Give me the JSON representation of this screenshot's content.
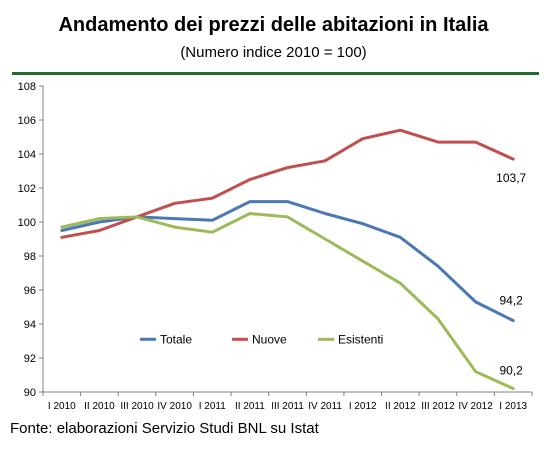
{
  "header": {
    "title": "Andamento dei prezzi delle abitazioni in Italia",
    "subtitle": "(Numero indice 2010 = 100)"
  },
  "footer": {
    "source": "Fonte: elaborazioni Servizio Studi BNL su Istat"
  },
  "colors": {
    "rule": "#1f6b2a",
    "Totale": "#4a78b5",
    "Nuove": "#c0504d",
    "Esistenti": "#9bbb59"
  },
  "chart_data": {
    "type": "line",
    "title": "Andamento dei prezzi delle abitazioni in Italia",
    "subtitle": "(Numero indice 2010 = 100)",
    "categories": [
      "I 2010",
      "II 2010",
      "III 2010",
      "IV 2010",
      "I 2011",
      "II 2011",
      "III 2011",
      "IV 2011",
      "I 2012",
      "II 2012",
      "III 2012",
      "IV 2012",
      "I 2013"
    ],
    "series": [
      {
        "name": "Totale",
        "values": [
          99.5,
          100.0,
          100.3,
          100.2,
          100.1,
          101.2,
          101.2,
          100.5,
          99.9,
          99.1,
          97.4,
          95.3,
          94.2
        ]
      },
      {
        "name": "Nuove",
        "values": [
          99.1,
          99.5,
          100.3,
          101.1,
          101.4,
          102.5,
          103.2,
          103.6,
          104.9,
          105.4,
          104.7,
          104.7,
          103.7
        ]
      },
      {
        "name": "Esistenti",
        "values": [
          99.7,
          100.2,
          100.3,
          99.7,
          99.4,
          100.5,
          100.3,
          99.0,
          97.7,
          96.4,
          94.3,
          91.2,
          90.2
        ]
      }
    ],
    "ylim": [
      90,
      108
    ],
    "yticks": [
      90,
      92,
      94,
      96,
      98,
      100,
      102,
      104,
      106,
      108
    ],
    "grid": false,
    "legend": "inside-bottom-left",
    "end_labels": [
      {
        "series": "Nuove",
        "text": "103,7"
      },
      {
        "series": "Totale",
        "text": "94,2"
      },
      {
        "series": "Esistenti",
        "text": "90,2"
      }
    ]
  }
}
